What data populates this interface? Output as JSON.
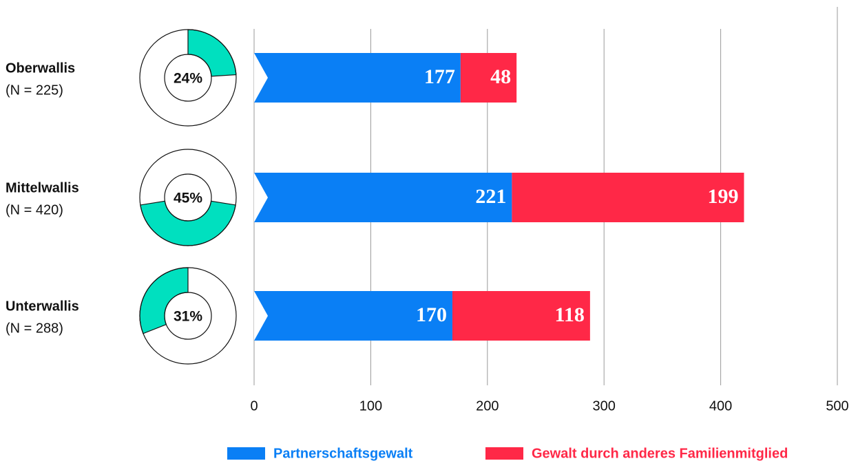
{
  "chart_data": {
    "type": "stacked-bar",
    "categories": [
      "Oberwallis",
      "Mittelwallis",
      "Unterwallis"
    ],
    "category_notes": [
      "(N = 225)",
      "(N = 420)",
      "(N = 288)"
    ],
    "series": [
      {
        "name": "Partnerschaftsgewalt",
        "color": "#0a7ff5",
        "values": [
          177,
          221,
          170
        ]
      },
      {
        "name": "Gewalt durch anderes Familienmitglied",
        "color": "#ff2847",
        "values": [
          48,
          199,
          118
        ]
      }
    ],
    "donut": {
      "values": [
        24,
        45,
        31
      ],
      "value_labels": [
        "24%",
        "45%",
        "31%"
      ],
      "color": "#00e0bf"
    },
    "xlim": [
      0,
      500
    ],
    "xticks": [
      0,
      100,
      200,
      300,
      400,
      500
    ],
    "grid": true
  }
}
